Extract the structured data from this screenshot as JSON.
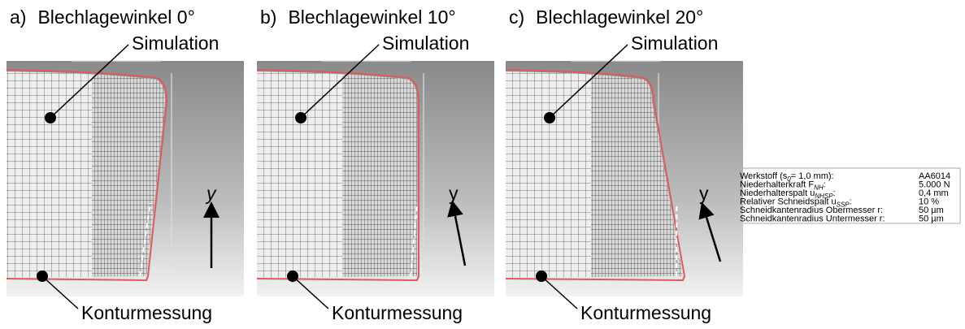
{
  "panels": [
    {
      "label": "a)",
      "title": "Blechlagewinkel 0°",
      "simulation": "Simulation",
      "measurement": "Konturmessung",
      "axis": "y"
    },
    {
      "label": "b)",
      "title": "Blechlagewinkel 10°",
      "simulation": "Simulation",
      "measurement": "Konturmessung",
      "axis": "y"
    },
    {
      "label": "c)",
      "title": "Blechlagewinkel 20°",
      "simulation": "Simulation",
      "measurement": "Konturmessung",
      "axis": "y"
    }
  ],
  "table": {
    "rows": [
      {
        "label": "Werkstoff (s",
        "subscript": "0",
        "label_end": "= 1,0 mm):",
        "value": "AA6014"
      },
      {
        "label": "Niederhalterkraft F",
        "subscript": "NH",
        "label_end": ":",
        "value": "5.000 N"
      },
      {
        "label": "Niederhalterspalt u",
        "subscript": "NHSP",
        "label_end": ":",
        "value": "0,4 mm"
      },
      {
        "label": "Relativer Schneidspalt u",
        "subscript": "SSP",
        "label_end": ":",
        "value": "10 %"
      },
      {
        "label": "Schneidkantenradius Obermesser r:",
        "value": "50 µm"
      },
      {
        "label": "Schneidkantenradius Untermesser r:",
        "value": "50 µm"
      }
    ]
  }
}
